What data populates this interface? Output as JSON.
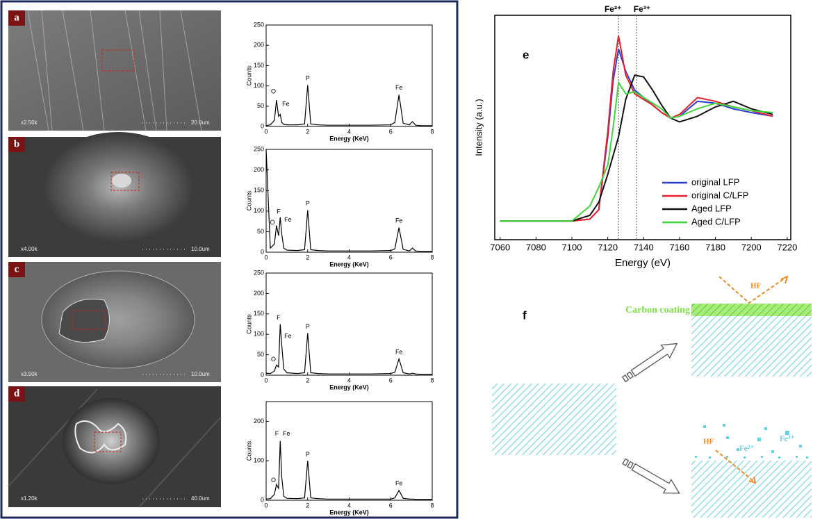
{
  "chart_data": [
    {
      "type": "line",
      "x_label": "Energy (KeV)",
      "y_label": "Counts",
      "color": "#000000",
      "x": [
        0,
        0.2,
        0.4,
        0.5,
        0.6,
        0.68,
        0.75,
        0.85,
        1.0,
        1.5,
        1.85,
        2.0,
        2.15,
        2.5,
        3,
        4,
        5,
        6,
        6.2,
        6.4,
        6.6,
        6.9,
        7.05,
        7.2,
        7.5,
        8
      ],
      "values": [
        2,
        4,
        15,
        65,
        25,
        30,
        10,
        5,
        4,
        4,
        6,
        102,
        6,
        4,
        3,
        3,
        3,
        4,
        10,
        78,
        8,
        4,
        12,
        3,
        2,
        2
      ],
      "xlim": [
        0,
        8
      ],
      "xticks": [
        0,
        2,
        4,
        6,
        8
      ],
      "ylim": [
        0,
        250
      ],
      "yticks": [
        0,
        50,
        100,
        150,
        200,
        250
      ],
      "annotations": [
        "O",
        "Fe",
        "P",
        "Fe"
      ]
    },
    {
      "type": "line",
      "x_label": "Energy (KeV)",
      "y_label": "Counts",
      "color": "#000000",
      "x": [
        0,
        0.2,
        0.4,
        0.5,
        0.6,
        0.68,
        0.75,
        0.85,
        1.0,
        1.5,
        1.85,
        2.0,
        2.15,
        2.5,
        3,
        4,
        5,
        6,
        6.2,
        6.4,
        6.6,
        6.9,
        7.05,
        7.2,
        7.5,
        8
      ],
      "values": [
        250,
        10,
        20,
        65,
        40,
        85,
        45,
        10,
        5,
        4,
        6,
        102,
        6,
        4,
        3,
        3,
        3,
        4,
        8,
        60,
        7,
        3,
        10,
        3,
        2,
        2
      ],
      "xlim": [
        0,
        8
      ],
      "xticks": [
        0,
        2,
        4,
        6,
        8
      ],
      "ylim": [
        0,
        250
      ],
      "yticks": [
        0,
        50,
        100,
        150,
        200,
        250
      ],
      "annotations": [
        "O",
        "F",
        "Fe",
        "P",
        "Fe"
      ]
    },
    {
      "type": "line",
      "x_label": "Energy (KeV)",
      "y_label": "Counts",
      "color": "#000000",
      "x": [
        0,
        0.2,
        0.4,
        0.5,
        0.6,
        0.68,
        0.75,
        0.85,
        1.0,
        1.5,
        1.85,
        2.0,
        2.15,
        2.5,
        3,
        4,
        5,
        6,
        6.2,
        6.4,
        6.6,
        6.9,
        7.05,
        7.2,
        7.5,
        8
      ],
      "values": [
        5,
        4,
        10,
        25,
        20,
        125,
        75,
        15,
        6,
        4,
        6,
        103,
        6,
        4,
        3,
        3,
        3,
        4,
        7,
        40,
        6,
        3,
        5,
        3,
        2,
        2
      ],
      "xlim": [
        0,
        8
      ],
      "xticks": [
        0,
        2,
        4,
        6,
        8
      ],
      "ylim": [
        0,
        250
      ],
      "yticks": [
        0,
        50,
        100,
        150,
        200,
        250
      ],
      "annotations": [
        "O",
        "F",
        "Fe",
        "P",
        "Fe"
      ]
    },
    {
      "type": "line",
      "x_label": "Energy (KeV)",
      "y_label": "Counts",
      "color": "#000000",
      "x": [
        0,
        0.2,
        0.4,
        0.5,
        0.6,
        0.68,
        0.75,
        0.85,
        1.0,
        1.5,
        1.85,
        2.0,
        2.15,
        2.5,
        3,
        4,
        5,
        6,
        6.2,
        6.4,
        6.6,
        6.9,
        7.05,
        7.2,
        7.5,
        8
      ],
      "values": [
        3,
        4,
        15,
        40,
        30,
        150,
        60,
        10,
        5,
        4,
        6,
        100,
        6,
        4,
        3,
        3,
        3,
        3,
        6,
        25,
        5,
        3,
        3,
        2,
        2,
        2
      ],
      "xlim": [
        0,
        8
      ],
      "xticks": [
        0,
        2,
        4,
        6,
        8
      ],
      "ylim": [
        0,
        250
      ],
      "yticks": [
        0,
        100,
        200
      ],
      "annotations": [
        "O",
        "F",
        "Fe",
        "P",
        "Fe"
      ]
    },
    {
      "type": "line",
      "x_label": "Energy (eV)",
      "y_label": "Intensity (a.u.)",
      "x": [
        7060,
        7100,
        7110,
        7115,
        7120,
        7123,
        7126,
        7130,
        7135,
        7140,
        7145,
        7150,
        7155,
        7160,
        7170,
        7180,
        7190,
        7200,
        7212
      ],
      "series": [
        {
          "name": "original LFP",
          "color": "#2a3fd6",
          "values": [
            0.1,
            0.1,
            0.11,
            0.16,
            0.55,
            0.85,
            1.02,
            0.9,
            0.8,
            0.76,
            0.72,
            0.68,
            0.65,
            0.66,
            0.74,
            0.73,
            0.7,
            0.68,
            0.66
          ]
        },
        {
          "name": "original C/LFP",
          "color": "#e8202a",
          "values": [
            0.1,
            0.1,
            0.11,
            0.16,
            0.58,
            0.9,
            1.09,
            0.88,
            0.78,
            0.75,
            0.72,
            0.68,
            0.65,
            0.67,
            0.76,
            0.74,
            0.71,
            0.69,
            0.66
          ]
        },
        {
          "name": "Aged LFP",
          "color": "#111111",
          "values": [
            0.1,
            0.1,
            0.13,
            0.2,
            0.35,
            0.45,
            0.55,
            0.75,
            0.88,
            0.87,
            0.8,
            0.72,
            0.65,
            0.63,
            0.66,
            0.71,
            0.74,
            0.7,
            0.67
          ]
        },
        {
          "name": "Aged C/LFP",
          "color": "#3ed63a",
          "values": [
            0.1,
            0.1,
            0.18,
            0.28,
            0.4,
            0.6,
            0.84,
            0.78,
            0.79,
            0.76,
            0.73,
            0.7,
            0.65,
            0.66,
            0.7,
            0.73,
            0.71,
            0.69,
            0.68
          ]
        }
      ],
      "xlim": [
        7057,
        7222
      ],
      "xticks": [
        7060,
        7080,
        7100,
        7120,
        7140,
        7160,
        7180,
        7200,
        7220
      ],
      "ylim": [
        0,
        1.2
      ],
      "vlines": [
        7126,
        7136
      ],
      "annotations": [
        "Fe²⁺",
        "Fe³⁺"
      ],
      "legend": "lower right"
    }
  ],
  "panel_labels": [
    "a",
    "b",
    "c",
    "d",
    "e",
    "f"
  ],
  "sem_images": [
    {
      "magnification": "x2.50k",
      "scale": "20.0um"
    },
    {
      "magnification": "x4.00k",
      "scale": "10.0um"
    },
    {
      "magnification": "x3.50k",
      "scale": "10.0um"
    },
    {
      "magnification": "x1.20k",
      "scale": "40.0um"
    }
  ],
  "diagram": {
    "coating_label": "Carbon coating",
    "hf_labels": [
      "HF",
      "HF"
    ],
    "ion_labels": [
      "Fe²⁺",
      "Fe³⁺"
    ]
  }
}
